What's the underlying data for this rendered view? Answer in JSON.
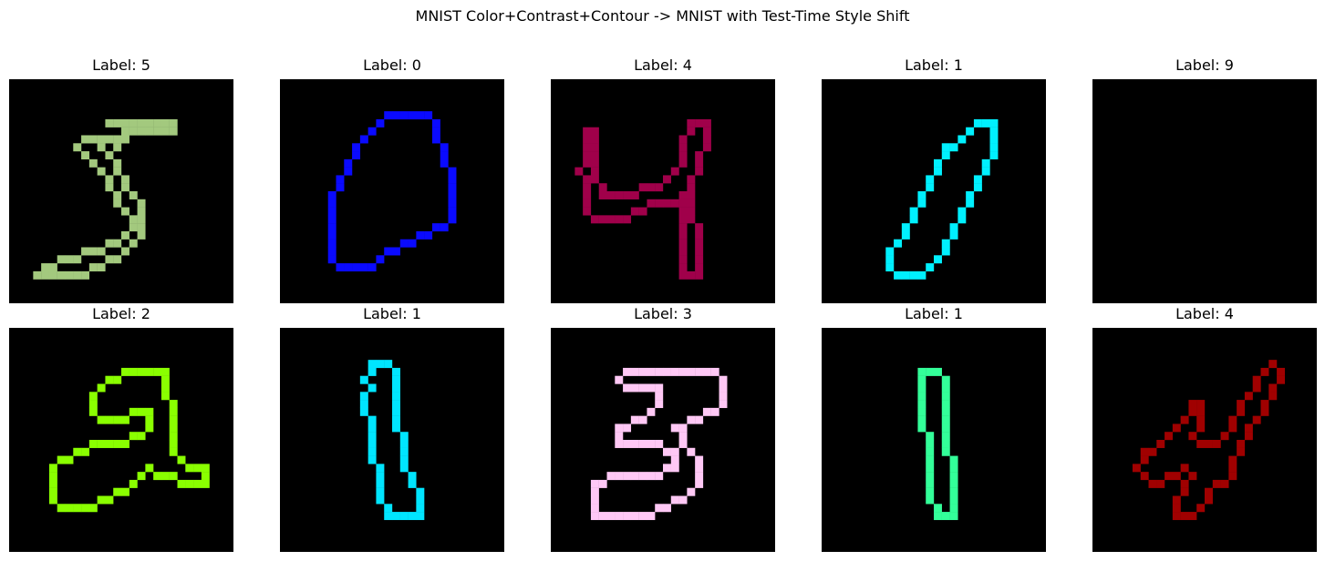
{
  "figure": {
    "suptitle": "MNIST Color+Contrast+Contour -> MNIST with Test-Time Style Shift"
  },
  "panels": [
    {
      "label": "Label: 5",
      "color": "#a3c97e",
      "digit_strokes": [
        [
          [
            12,
            5
          ],
          [
            20,
            5
          ],
          [
            20,
            6
          ],
          [
            14,
            6
          ],
          [
            12,
            7
          ],
          [
            9,
            7
          ],
          [
            8,
            8
          ],
          [
            9,
            9
          ],
          [
            10,
            10
          ],
          [
            11,
            11
          ],
          [
            12,
            12
          ],
          [
            12,
            13
          ],
          [
            13,
            15
          ],
          [
            14,
            16
          ],
          [
            15,
            17
          ],
          [
            14,
            19
          ],
          [
            12,
            20
          ],
          [
            10,
            21
          ],
          [
            7,
            22
          ],
          [
            4,
            23
          ],
          [
            3,
            24
          ],
          [
            5,
            24
          ],
          [
            8,
            24
          ],
          [
            10,
            23
          ],
          [
            13,
            22
          ],
          [
            15,
            20
          ],
          [
            16,
            18
          ],
          [
            16,
            16
          ],
          [
            15,
            14
          ],
          [
            14,
            13
          ],
          [
            13,
            11
          ],
          [
            12,
            9
          ],
          [
            11,
            8
          ]
        ],
        [
          [
            16,
            5
          ],
          [
            20,
            5
          ]
        ],
        [
          [
            14,
            7
          ],
          [
            13,
            8
          ],
          [
            12,
            9
          ]
        ]
      ]
    },
    {
      "label": "Label: 0",
      "color": "#0a0aff",
      "digit_strokes": [
        [
          [
            15,
            4
          ],
          [
            18,
            4
          ],
          [
            19,
            6
          ],
          [
            20,
            9
          ],
          [
            21,
            12
          ],
          [
            21,
            17
          ],
          [
            19,
            18
          ],
          [
            17,
            19
          ],
          [
            15,
            20
          ],
          [
            13,
            21
          ],
          [
            12,
            22
          ],
          [
            11,
            23
          ],
          [
            7,
            23
          ],
          [
            6,
            22
          ],
          [
            6,
            19
          ],
          [
            6,
            15
          ],
          [
            7,
            12
          ],
          [
            8,
            10
          ],
          [
            9,
            8
          ],
          [
            10,
            7
          ],
          [
            11,
            6
          ],
          [
            12,
            5
          ],
          [
            13,
            4
          ],
          [
            15,
            4
          ]
        ]
      ]
    },
    {
      "label": "Label: 4",
      "color": "#a0004a",
      "digit_strokes": [
        [
          [
            4,
            6
          ],
          [
            4,
            10
          ],
          [
            3,
            11
          ],
          [
            4,
            13
          ],
          [
            4,
            16
          ],
          [
            6,
            17
          ],
          [
            9,
            17
          ],
          [
            10,
            16
          ],
          [
            12,
            15
          ],
          [
            13,
            15
          ],
          [
            15,
            15
          ],
          [
            16,
            14
          ],
          [
            16,
            18
          ],
          [
            16,
            24
          ],
          [
            18,
            24
          ],
          [
            18,
            20
          ],
          [
            17,
            16
          ],
          [
            17,
            13
          ],
          [
            18,
            10
          ],
          [
            19,
            7
          ],
          [
            19,
            5
          ],
          [
            17,
            5
          ],
          [
            16,
            7
          ],
          [
            16,
            10
          ],
          [
            14,
            12
          ],
          [
            12,
            13
          ],
          [
            9,
            14
          ],
          [
            6,
            14
          ],
          [
            5,
            12
          ],
          [
            5,
            8
          ],
          [
            5,
            6
          ],
          [
            4,
            6
          ]
        ]
      ]
    },
    {
      "label": "Label: 1",
      "color": "#00f0ff",
      "digit_strokes": [
        [
          [
            19,
            5
          ],
          [
            21,
            5
          ],
          [
            21,
            8
          ],
          [
            20,
            10
          ],
          [
            19,
            12
          ],
          [
            18,
            14
          ],
          [
            17,
            16
          ],
          [
            16,
            18
          ],
          [
            15,
            20
          ],
          [
            14,
            22
          ],
          [
            13,
            23
          ],
          [
            12,
            24
          ],
          [
            9,
            24
          ],
          [
            8,
            23
          ],
          [
            8,
            21
          ],
          [
            9,
            20
          ],
          [
            10,
            18
          ],
          [
            11,
            16
          ],
          [
            12,
            14
          ],
          [
            13,
            12
          ],
          [
            14,
            10
          ],
          [
            15,
            8
          ],
          [
            17,
            7
          ],
          [
            19,
            5
          ]
        ]
      ]
    },
    {
      "label": "Label: 9",
      "color": "#000000",
      "digit_strokes": []
    },
    {
      "label": "Label: 2",
      "color": "#8aff00",
      "digit_strokes": [
        [
          [
            14,
            5
          ],
          [
            19,
            5
          ],
          [
            19,
            8
          ],
          [
            20,
            10
          ],
          [
            20,
            14
          ],
          [
            20,
            15
          ],
          [
            22,
            17
          ],
          [
            24,
            17
          ],
          [
            24,
            19
          ],
          [
            22,
            19
          ],
          [
            19,
            18
          ],
          [
            17,
            17
          ],
          [
            15,
            19
          ],
          [
            13,
            20
          ],
          [
            11,
            21
          ],
          [
            10,
            22
          ],
          [
            6,
            22
          ],
          [
            5,
            21
          ],
          [
            5,
            18
          ],
          [
            5,
            17
          ],
          [
            6,
            16
          ],
          [
            8,
            15
          ],
          [
            11,
            14
          ],
          [
            13,
            14
          ],
          [
            15,
            13
          ],
          [
            17,
            12
          ],
          [
            17,
            10
          ],
          [
            15,
            10
          ],
          [
            13,
            11
          ],
          [
            11,
            11
          ],
          [
            10,
            10
          ],
          [
            10,
            8
          ],
          [
            11,
            7
          ],
          [
            12,
            6
          ],
          [
            14,
            5
          ]
        ]
      ]
    },
    {
      "label": "Label: 1",
      "color": "#00e5ff",
      "digit_strokes": [
        [
          [
            11,
            4
          ],
          [
            13,
            4
          ],
          [
            14,
            6
          ],
          [
            14,
            9
          ],
          [
            14,
            12
          ],
          [
            15,
            14
          ],
          [
            15,
            17
          ],
          [
            16,
            19
          ],
          [
            17,
            21
          ],
          [
            17,
            23
          ],
          [
            13,
            23
          ],
          [
            12,
            21
          ],
          [
            12,
            18
          ],
          [
            11,
            15
          ],
          [
            11,
            12
          ],
          [
            10,
            10
          ],
          [
            10,
            8
          ],
          [
            11,
            7
          ],
          [
            10,
            6
          ],
          [
            11,
            4
          ]
        ]
      ]
    },
    {
      "label": "Label: 3",
      "color": "#ffc8f5",
      "digit_strokes": [
        [
          [
            9,
            5
          ],
          [
            12,
            5
          ],
          [
            20,
            5
          ],
          [
            21,
            7
          ],
          [
            21,
            9
          ],
          [
            19,
            10
          ],
          [
            17,
            11
          ],
          [
            15,
            12
          ],
          [
            16,
            14
          ],
          [
            17,
            15
          ],
          [
            18,
            16
          ],
          [
            18,
            18
          ],
          [
            17,
            20
          ],
          [
            15,
            21
          ],
          [
            13,
            22
          ],
          [
            11,
            23
          ],
          [
            7,
            23
          ],
          [
            5,
            23
          ],
          [
            5,
            21
          ],
          [
            5,
            19
          ],
          [
            7,
            18
          ],
          [
            9,
            18
          ],
          [
            12,
            18
          ],
          [
            15,
            17
          ],
          [
            15,
            15
          ],
          [
            13,
            14
          ],
          [
            11,
            14
          ],
          [
            8,
            14
          ],
          [
            8,
            12
          ],
          [
            10,
            11
          ],
          [
            12,
            10
          ],
          [
            13,
            9
          ],
          [
            13,
            7
          ],
          [
            11,
            7
          ],
          [
            9,
            7
          ],
          [
            8,
            6
          ],
          [
            9,
            5
          ]
        ]
      ]
    },
    {
      "label": "Label: 1",
      "color": "#33ff99",
      "digit_strokes": [
        [
          [
            12,
            5
          ],
          [
            14,
            5
          ],
          [
            15,
            7
          ],
          [
            15,
            11
          ],
          [
            15,
            15
          ],
          [
            16,
            17
          ],
          [
            16,
            20
          ],
          [
            16,
            23
          ],
          [
            14,
            23
          ],
          [
            13,
            20
          ],
          [
            13,
            17
          ],
          [
            13,
            14
          ],
          [
            12,
            12
          ],
          [
            12,
            9
          ],
          [
            12,
            5
          ]
        ]
      ]
    },
    {
      "label": "Label: 4",
      "color": "#a00000",
      "digit_strokes": [
        [
          [
            22,
            4
          ],
          [
            23,
            5
          ],
          [
            22,
            7
          ],
          [
            21,
            9
          ],
          [
            20,
            11
          ],
          [
            19,
            12
          ],
          [
            18,
            14
          ],
          [
            17,
            16
          ],
          [
            17,
            18
          ],
          [
            15,
            19
          ],
          [
            14,
            20
          ],
          [
            13,
            22
          ],
          [
            12,
            23
          ],
          [
            10,
            23
          ],
          [
            10,
            21
          ],
          [
            11,
            19
          ],
          [
            12,
            18
          ],
          [
            11,
            17
          ],
          [
            9,
            18
          ],
          [
            7,
            19
          ],
          [
            6,
            18
          ],
          [
            5,
            17
          ],
          [
            6,
            15
          ],
          [
            8,
            14
          ],
          [
            9,
            13
          ],
          [
            10,
            12
          ],
          [
            11,
            11
          ],
          [
            12,
            9
          ],
          [
            13,
            9
          ],
          [
            13,
            11
          ],
          [
            12,
            13
          ],
          [
            14,
            14
          ],
          [
            16,
            13
          ],
          [
            17,
            11
          ],
          [
            18,
            9
          ],
          [
            19,
            8
          ],
          [
            20,
            6
          ],
          [
            21,
            5
          ],
          [
            22,
            4
          ]
        ]
      ]
    }
  ]
}
